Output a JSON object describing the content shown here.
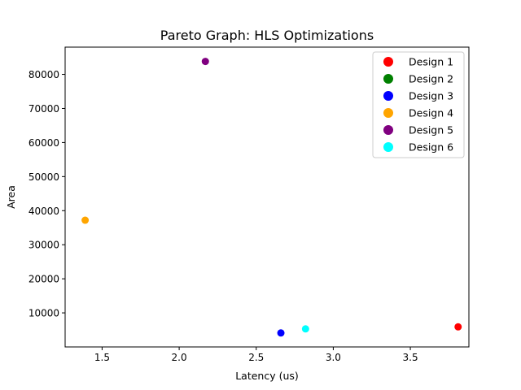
{
  "chart_data": {
    "type": "scatter",
    "title": "Pareto Graph: HLS Optimizations",
    "xlabel": "Latency (us)",
    "ylabel": "Area",
    "xlim": [
      1.26,
      3.88
    ],
    "ylim": [
      0,
      88000
    ],
    "x_ticks": [
      1.5,
      2.0,
      2.5,
      3.0,
      3.5
    ],
    "x_tick_labels": [
      "1.5",
      "2.0",
      "2.5",
      "3.0",
      "3.5"
    ],
    "y_ticks": [
      10000,
      20000,
      30000,
      40000,
      50000,
      60000,
      70000,
      80000
    ],
    "y_tick_labels": [
      "10000",
      "20000",
      "30000",
      "40000",
      "50000",
      "60000",
      "70000",
      "80000"
    ],
    "grid": false,
    "legend_position": "top-right",
    "series": [
      {
        "name": "Design 1",
        "color": "#ff0000",
        "x": 3.81,
        "y": 5900
      },
      {
        "name": "Design 2",
        "color": "#008000",
        "x": null,
        "y": null
      },
      {
        "name": "Design 3",
        "color": "#0000ff",
        "x": 2.66,
        "y": 4100
      },
      {
        "name": "Design 4",
        "color": "#ffa500",
        "x": 1.39,
        "y": 37200
      },
      {
        "name": "Design 5",
        "color": "#800080",
        "x": 2.17,
        "y": 83800
      },
      {
        "name": "Design 6",
        "color": "#00ffff",
        "x": 2.82,
        "y": 5300
      }
    ]
  }
}
